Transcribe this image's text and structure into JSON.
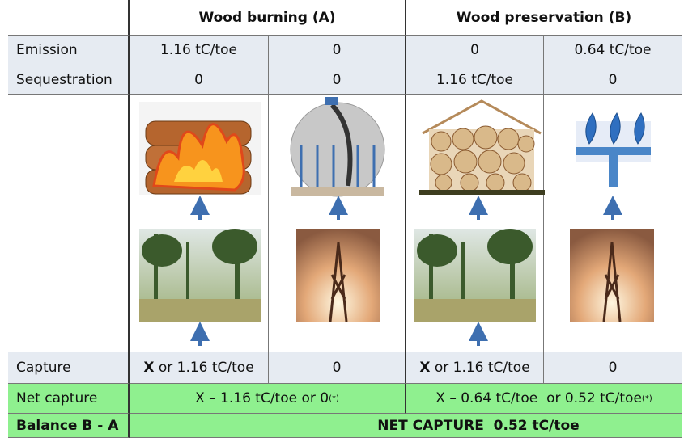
{
  "header": {
    "columns": [
      "Wood burning (A)",
      "Wood preservation (B)"
    ]
  },
  "rows": [
    {
      "label": "Emission",
      "cells": [
        "1.16 tC/toe",
        "0",
        "0",
        "0.64 tC/toe"
      ]
    },
    {
      "label": "Sequestration",
      "cells": [
        "0",
        "0",
        "1.16 tC/toe",
        "0"
      ]
    },
    {
      "label": "Capture",
      "cells": [
        {
          "bold": "X",
          "text": "or 1.16 tC/toe"
        },
        "0",
        {
          "bold": "X",
          "text": "or 1.16 tC/toe"
        },
        "0"
      ]
    },
    {
      "label": "Net capture",
      "cells": [
        {
          "text": "X – 1.16 tC/toe or 0",
          "note": "(*)"
        },
        {
          "text": "X – 0.64 tC/toe  or 0.52 tC/toe",
          "note": "(*)"
        }
      ]
    },
    {
      "label": "Balance B - A",
      "value": "NET CAPTURE  0.52 tC/toe"
    }
  ]
}
